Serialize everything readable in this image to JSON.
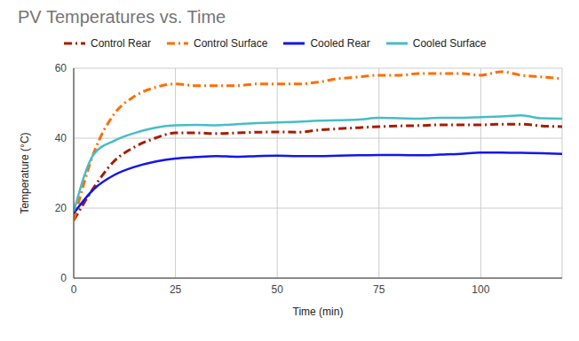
{
  "chart_data": {
    "type": "line",
    "title": "PV Temperatures vs. Time",
    "x_label": "Time (min)",
    "y_label": "Temperature (°C)",
    "x": [
      0,
      5,
      10,
      15,
      20,
      25,
      30,
      35,
      40,
      45,
      50,
      55,
      60,
      65,
      70,
      75,
      80,
      85,
      90,
      95,
      100,
      105,
      110,
      115,
      120
    ],
    "series": [
      {
        "name": "Control Rear",
        "color": "#a61c00",
        "line_style": "dashdot",
        "values": [
          16.5,
          26,
          33.5,
          37.5,
          40,
          41.5,
          41.5,
          41.3,
          41.5,
          41.7,
          41.8,
          41.7,
          42.3,
          42.7,
          43,
          43.3,
          43.5,
          43.6,
          43.8,
          43.8,
          43.8,
          44,
          44,
          43.5,
          43.3
        ]
      },
      {
        "name": "Control Surface",
        "color": "#ff6d01",
        "line_style": "dashdot",
        "values": [
          16.5,
          36,
          47,
          52,
          54.5,
          55.5,
          55,
          55,
          55,
          55.5,
          55.5,
          55.5,
          56,
          57,
          57.5,
          58,
          58,
          58.5,
          58.5,
          58.5,
          58,
          59,
          58,
          57.5,
          57
        ]
      },
      {
        "name": "Cooled Rear",
        "color": "#1414f0",
        "line_style": "solid",
        "values": [
          18.5,
          25.5,
          29.5,
          31.8,
          33.3,
          34.2,
          34.6,
          34.9,
          34.7,
          34.9,
          35,
          34.9,
          34.9,
          35,
          35.1,
          35.2,
          35.2,
          35.1,
          35.3,
          35.5,
          35.9,
          35.9,
          35.8,
          35.7,
          35.5
        ]
      },
      {
        "name": "Cooled Surface",
        "color": "#46bdc6",
        "line_style": "solid",
        "values": [
          19,
          35.5,
          39.3,
          41.5,
          43,
          43.7,
          43.8,
          43.7,
          44,
          44.3,
          44.5,
          44.7,
          45,
          45.1,
          45.3,
          45.8,
          45.7,
          45.6,
          45.8,
          45.8,
          46,
          46.2,
          46.5,
          45.7,
          45.6
        ]
      }
    ],
    "xlim": [
      0,
      120
    ],
    "xticks": [
      0,
      25,
      50,
      75,
      100
    ],
    "ylim": [
      0,
      60
    ],
    "yticks": [
      0,
      20,
      40,
      60
    ],
    "grid": true,
    "legend": "top"
  }
}
